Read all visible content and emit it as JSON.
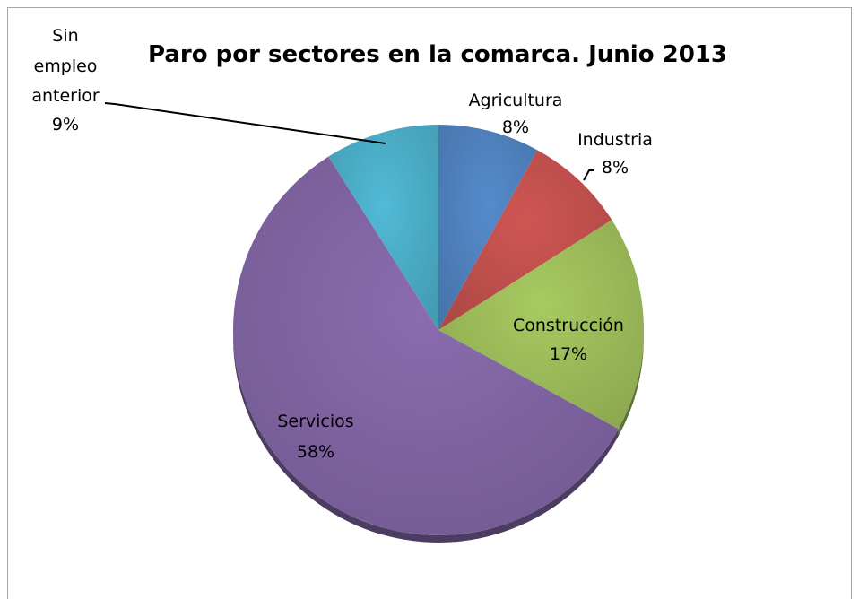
{
  "chart_data": {
    "type": "pie",
    "title": "Paro por sectores en la comarca. Junio 2013",
    "slices": [
      {
        "name": "Agricultura",
        "value": 8,
        "label": "8%",
        "color": "#4f81bd"
      },
      {
        "name": "Industria",
        "value": 8,
        "label": "8%",
        "color": "#c0504d"
      },
      {
        "name": "Construcción",
        "value": 17,
        "label": "17%",
        "color": "#9bbb59"
      },
      {
        "name": "Servicios",
        "value": 58,
        "label": "58%",
        "color": "#8064a2"
      },
      {
        "name": "Sin empleo anterior",
        "value": 9,
        "label": "9%",
        "color": "#4bacc6"
      }
    ],
    "legend": "none",
    "data_labels": "category name and percentage",
    "style": "3d pie"
  },
  "colors": {
    "border": "#a6a6a6",
    "background": "#ffffff"
  }
}
